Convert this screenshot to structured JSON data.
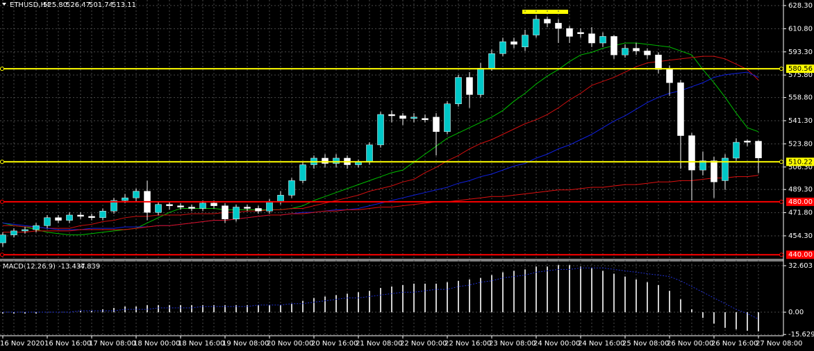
{
  "chart_data": [
    {
      "type": "candlestick",
      "title": "ETHUSD,H4",
      "header_prices": [
        "525.80",
        "526.47",
        "501.74",
        "513.11"
      ],
      "categories": [
        "16 Nov 2020",
        null,
        null,
        null,
        "16 Nov 16:00",
        null,
        null,
        null,
        "17 Nov 08:00",
        null,
        null,
        null,
        "18 Nov 00:00",
        null,
        null,
        null,
        "18 Nov 16:00",
        null,
        null,
        null,
        "19 Nov 08:00",
        null,
        null,
        null,
        "20 Nov 00:00",
        null,
        null,
        null,
        "20 Nov 16:00",
        null,
        null,
        null,
        "21 Nov 08:00",
        null,
        null,
        null,
        "22 Nov 00:00",
        null,
        null,
        null,
        "22 Nov 16:00",
        null,
        null,
        null,
        "23 Nov 08:00",
        null,
        null,
        null,
        "24 Nov 00:00",
        null,
        null,
        null,
        "24 Nov 16:00",
        null,
        null,
        null,
        "25 Nov 08:00",
        null,
        null,
        null,
        "26 Nov 00:00",
        null,
        null,
        null,
        "26 Nov 16:00",
        null,
        null,
        null,
        "27 Nov 08:00"
      ],
      "open": [
        449,
        455,
        458,
        459,
        462,
        468,
        466,
        470,
        469,
        468,
        473,
        481,
        483,
        488,
        472,
        478,
        477,
        476,
        475,
        479,
        477,
        467,
        476,
        475,
        473,
        480,
        485,
        496,
        508,
        513,
        509,
        513,
        508,
        510,
        523,
        546,
        545,
        543,
        543,
        544,
        533,
        554,
        574,
        561,
        581,
        592,
        601,
        597,
        606,
        618,
        615,
        611,
        608,
        607,
        600,
        605,
        591,
        596,
        594,
        591,
        580,
        570,
        530,
        504,
        511,
        496,
        513,
        526,
        525.8
      ],
      "high": [
        457,
        460,
        461,
        464,
        470,
        470,
        472,
        472,
        471,
        475,
        483,
        486,
        490,
        496,
        480,
        480,
        479,
        478,
        481,
        481,
        479,
        478,
        478,
        477,
        482,
        488,
        498,
        510,
        515,
        516,
        516,
        515,
        512,
        525,
        548,
        549,
        547,
        547,
        546,
        547,
        556,
        576,
        578,
        585,
        595,
        604,
        604,
        610,
        621,
        620,
        618,
        613,
        611,
        612,
        608,
        606,
        599,
        600,
        596,
        593,
        583,
        572,
        532,
        518,
        514,
        516,
        528,
        527,
        526.47
      ],
      "low": [
        446,
        453,
        456,
        457,
        460,
        464,
        464,
        467,
        466,
        466,
        471,
        479,
        480,
        466,
        470,
        474,
        474,
        473,
        473,
        475,
        464,
        465,
        473,
        471,
        471,
        478,
        483,
        494,
        505,
        506,
        506,
        505,
        506,
        508,
        521,
        540,
        538,
        540,
        540,
        515,
        531,
        552,
        551,
        559,
        579,
        590,
        596,
        594,
        604,
        612,
        600,
        600,
        604,
        597,
        597,
        588,
        589,
        591,
        588,
        577,
        560,
        505,
        481,
        500,
        483,
        489,
        511,
        522,
        501.74
      ],
      "close": [
        455,
        458,
        459,
        462,
        468,
        466,
        470,
        469,
        468,
        473,
        481,
        483,
        488,
        472,
        478,
        477,
        476,
        475,
        479,
        477,
        467,
        476,
        475,
        473,
        480,
        485,
        496,
        508,
        513,
        509,
        513,
        508,
        510,
        523,
        546,
        545,
        543,
        544,
        542,
        533,
        554,
        574,
        561,
        581,
        592,
        601,
        599,
        606,
        618,
        615,
        611,
        605,
        607,
        600,
        605,
        591,
        596,
        594,
        591,
        580,
        570,
        530,
        504,
        511,
        495,
        513,
        525,
        525,
        513.11
      ],
      "up_color": "#00c8c8",
      "down_color": "#ffffff",
      "lines": [
        {
          "color": "#00c000",
          "values": [
            464,
            462,
            461,
            459,
            457,
            456,
            455,
            455,
            456,
            457,
            458,
            459,
            460,
            464,
            468,
            472,
            475,
            475,
            475,
            475,
            474,
            474,
            474,
            474,
            474,
            474,
            475,
            477,
            481,
            484,
            487,
            490,
            493,
            496,
            499,
            502,
            504,
            510,
            516,
            522,
            528,
            532,
            536,
            540,
            544,
            549,
            556,
            562,
            569,
            575,
            580,
            586,
            591,
            593,
            596,
            598,
            600,
            600,
            599,
            598,
            597,
            594,
            591,
            580,
            570,
            559,
            547,
            536,
            533
          ]
        },
        {
          "color": "#d01010",
          "values": [
            462,
            462,
            461,
            461,
            460,
            460,
            460,
            462,
            463,
            465,
            466,
            468,
            469,
            469,
            470,
            470,
            470,
            471,
            471,
            471,
            472,
            472,
            473,
            473,
            474,
            474,
            475,
            475,
            477,
            479,
            481,
            483,
            485,
            488,
            490,
            492,
            495,
            497,
            502,
            506,
            511,
            515,
            520,
            524,
            527,
            531,
            535,
            539,
            542,
            546,
            551,
            557,
            562,
            568,
            571,
            574,
            578,
            582,
            585,
            586,
            587,
            588,
            589,
            590,
            590,
            588,
            584,
            580,
            572
          ]
        },
        {
          "color": "#1020e0",
          "values": [
            464,
            463,
            462,
            461,
            460,
            459,
            459,
            459,
            460,
            460,
            460,
            461,
            461,
            461,
            462,
            462,
            463,
            464,
            465,
            466,
            466,
            467,
            468,
            469,
            470,
            470,
            471,
            472,
            472,
            473,
            474,
            474,
            475,
            477,
            479,
            481,
            483,
            485,
            487,
            489,
            491,
            494,
            496,
            499,
            501,
            504,
            507,
            509,
            513,
            516,
            520,
            523,
            527,
            531,
            536,
            541,
            545,
            550,
            555,
            559,
            562,
            564,
            567,
            570,
            574,
            576,
            577,
            578,
            574
          ]
        },
        {
          "color": "#e01010",
          "values": [
            457,
            457,
            457,
            458,
            458,
            458,
            458,
            459,
            459,
            459,
            459,
            459,
            460,
            461,
            462,
            462,
            463,
            464,
            465,
            466,
            466,
            467,
            468,
            469,
            470,
            470,
            471,
            471,
            472,
            473,
            473,
            474,
            474,
            475,
            476,
            476,
            477,
            478,
            479,
            480,
            480,
            481,
            482,
            483,
            484,
            484,
            485,
            486,
            487,
            488,
            489,
            489,
            490,
            491,
            491,
            492,
            493,
            493,
            494,
            495,
            495,
            496,
            496,
            497,
            498,
            498,
            499,
            499,
            500
          ]
        }
      ],
      "levels": [
        {
          "value": 580.56,
          "label": "580.56",
          "color": "#ffff00"
        },
        {
          "value": 510.22,
          "label": "510.22",
          "color": "#ffff00"
        },
        {
          "value": 480,
          "label": "480.00",
          "color": "#ff0000"
        },
        {
          "value": 440,
          "label": "440.00",
          "color": "#ff0000"
        }
      ],
      "ylim": [
        437.5,
        632.5
      ],
      "yticks": [
        {
          "value": 628.3,
          "label": "628.30"
        },
        {
          "value": 610.8,
          "label": "610.80"
        },
        {
          "value": 593.3,
          "label": "593.30"
        },
        {
          "value": 575.8,
          "label": "575.80"
        },
        {
          "value": 558.8,
          "label": "558.80"
        },
        {
          "value": 541.3,
          "label": "541.30"
        },
        {
          "value": 523.8,
          "label": "523.80"
        },
        {
          "value": 506.3,
          "label": "506.30"
        },
        {
          "value": 489.3,
          "label": "489.30"
        },
        {
          "value": 471.8,
          "label": "471.80"
        },
        {
          "value": 454.3,
          "label": "454.30"
        }
      ],
      "grid": true
    },
    {
      "type": "histogram_line",
      "title": "MACD(12,26,9)",
      "header_values": [
        -13.437,
        -4.839
      ],
      "values": [
        -1,
        -1,
        -1,
        -1,
        0,
        0,
        0,
        1,
        1,
        2,
        3,
        4,
        4,
        5,
        5,
        5,
        5,
        5,
        5,
        5,
        5,
        5,
        5,
        5,
        5,
        5,
        6,
        8,
        10,
        11,
        12,
        13,
        14,
        15,
        17,
        18,
        19,
        20,
        20,
        20,
        21,
        22,
        23,
        24,
        26,
        28,
        29,
        30,
        32,
        32,
        33,
        33,
        32,
        31,
        29,
        27,
        25,
        23,
        21,
        19,
        15,
        9,
        2,
        -4,
        -8,
        -11,
        -12,
        -13,
        -13.437
      ],
      "signal": [
        0,
        0,
        0,
        0,
        0,
        0,
        0,
        1,
        1,
        1,
        1,
        2,
        2,
        2,
        3,
        3,
        3,
        3,
        4,
        4,
        4,
        4,
        4,
        5,
        5,
        5,
        6,
        6,
        7,
        8,
        9,
        10,
        10,
        11,
        12,
        13,
        14,
        14,
        15,
        16,
        16,
        18,
        19,
        21,
        22,
        24,
        25,
        26,
        28,
        29,
        30,
        30,
        31,
        31,
        31,
        30,
        29,
        28,
        27,
        26,
        25,
        22,
        18,
        14,
        10,
        6,
        2,
        -1,
        -4.839
      ],
      "color": "#d0d0d0",
      "signal_color": "#2030d0",
      "ylim": [
        -16.5,
        36
      ],
      "yticks": [
        32.603,
        {
          "value": 0,
          "label": "0.00"
        },
        -15.629
      ],
      "grid": true
    }
  ]
}
